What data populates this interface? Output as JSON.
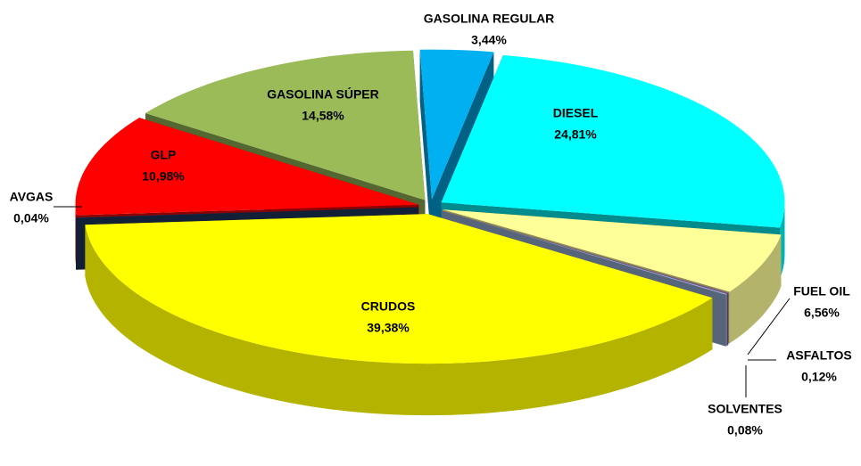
{
  "chart_data": {
    "type": "pie3d",
    "categories": [
      "GASOLINA REGULAR",
      "DIESEL",
      "FUEL OIL",
      "ASFALTOS",
      "SOLVENTES",
      "CRUDOS",
      "AVGAS",
      "GLP",
      "GASOLINA SÚPER"
    ],
    "values": [
      3.44,
      24.81,
      6.56,
      0.12,
      0.08,
      39.38,
      0.04,
      10.98,
      14.58
    ],
    "value_labels": [
      "3,44%",
      "24,81%",
      "6,56%",
      "0,12%",
      "0,08%",
      "39,38%",
      "0,04%",
      "10,98%",
      "14,58%"
    ],
    "colors": [
      "#00b0f0",
      "#00ffff",
      "#ffff99",
      "#7f4f8f",
      "#9db8dc",
      "#ffff00",
      "#1f3864",
      "#ff0000",
      "#9bbb59"
    ]
  }
}
